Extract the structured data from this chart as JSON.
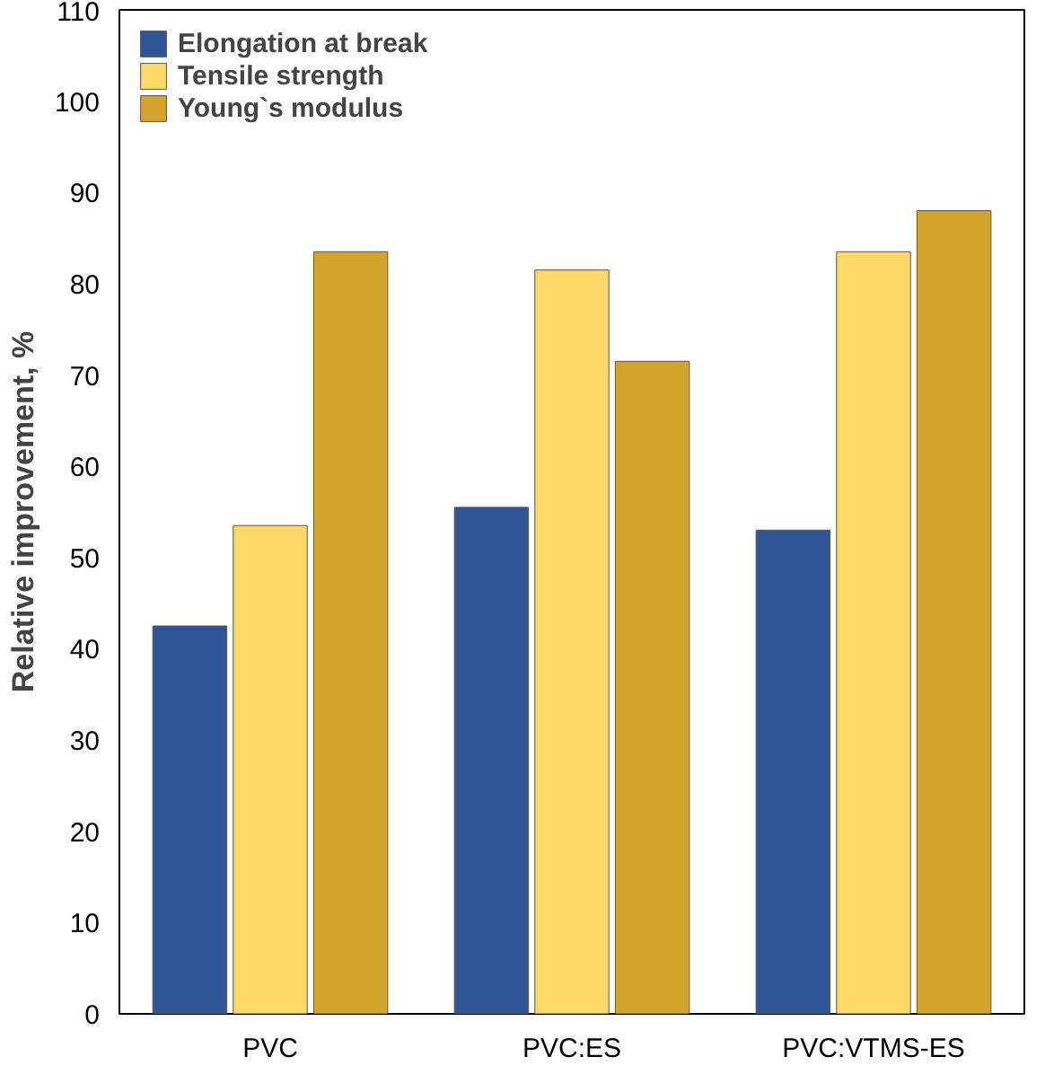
{
  "chart_data": {
    "type": "bar",
    "ylabel": "Relative improvement, %",
    "categories": [
      "PVC",
      "PVC:ES",
      "PVC:VTMS-ES"
    ],
    "series": [
      {
        "name": "Elongation at break",
        "color": "#2f5597",
        "values": [
          42.5,
          55.5,
          53
        ]
      },
      {
        "name": "Tensile strength",
        "color": "#ffd966",
        "values": [
          53.5,
          81.5,
          83.5
        ]
      },
      {
        "name": "Young`s modulus",
        "color": "#d4a32a",
        "values": [
          83.5,
          71.5,
          88
        ]
      }
    ],
    "ylim": [
      0,
      110
    ],
    "yticks": [
      0,
      10,
      20,
      30,
      40,
      50,
      60,
      70,
      80,
      90,
      100,
      110
    ],
    "grid": false,
    "legend": "top left"
  }
}
